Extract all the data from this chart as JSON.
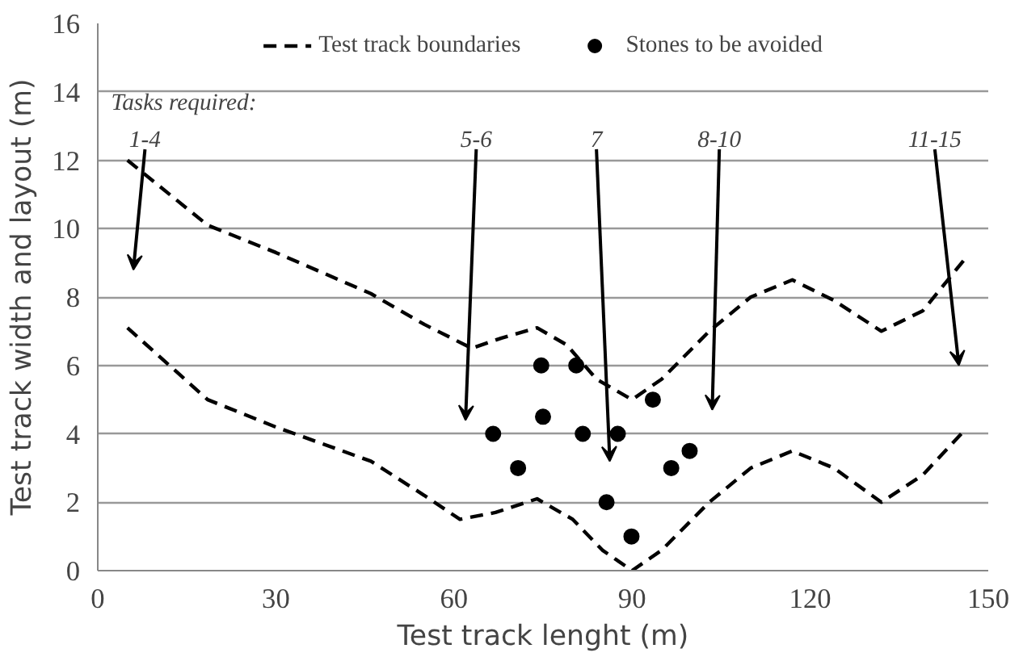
{
  "chart_data": {
    "type": "line",
    "xlabel": "Test track lenght (m)",
    "ylabel": "Test track width and layout (m)",
    "xlim": [
      0,
      150
    ],
    "xticks": [
      0,
      30,
      60,
      90,
      120,
      150
    ],
    "ylim": [
      0,
      16
    ],
    "yticks": [
      0,
      2,
      4,
      6,
      8,
      10,
      12,
      14,
      16
    ],
    "grid": "y",
    "legend": "top",
    "line_style": "dashed",
    "marker": "none",
    "series": [
      {
        "name": "Test track boundaries",
        "color": "#000000",
        "x": [
          5,
          18.5,
          30,
          46,
          55,
          63,
          68,
          74,
          79,
          84,
          90,
          95,
          103,
          110,
          117,
          124,
          132,
          139,
          146
        ],
        "values": [
          12,
          10.1,
          9.3,
          8.1,
          7.2,
          6.5,
          6.8,
          7.1,
          6.6,
          5.6,
          5.0,
          5.6,
          7.0,
          8.0,
          8.5,
          7.9,
          7.0,
          7.6,
          9.1
        ]
      },
      {
        "color": "#000000",
        "x": [
          5,
          18.5,
          30,
          46,
          55,
          61,
          67,
          74,
          80,
          85,
          90,
          95,
          103,
          110,
          117,
          124,
          132,
          139,
          146
        ],
        "values": [
          7.1,
          5.0,
          4.2,
          3.2,
          2.2,
          1.5,
          1.7,
          2.1,
          1.5,
          0.6,
          0,
          0.6,
          2.0,
          3.0,
          3.5,
          3.0,
          2.0,
          2.8,
          4.1
        ]
      },
      {
        "name": "Stones to be avoided",
        "type": "scatter",
        "marker": "circle",
        "color": "#000000",
        "x": [
          74.7,
          80.6,
          75,
          66.6,
          70.8,
          81.7,
          87.6,
          93.5,
          96.6,
          99.7,
          85.7,
          89.9
        ],
        "values": [
          6,
          6,
          4.5,
          4,
          3,
          4,
          4,
          5,
          3,
          3.5,
          2,
          1
        ]
      }
    ],
    "annotations": [
      "Tasks required:",
      "1-4",
      "5-6",
      "7",
      "8-10",
      "11-15"
    ]
  }
}
